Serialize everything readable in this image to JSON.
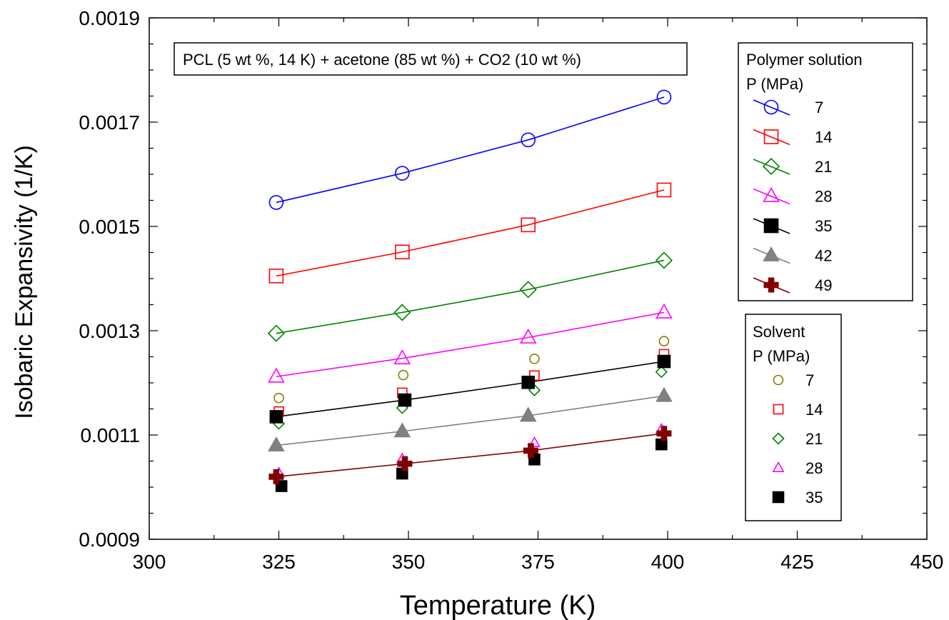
{
  "chart_data": {
    "type": "scatter",
    "title": "",
    "annotation": "PCL (5 wt %, 14 K) + acetone (85 wt %) + CO2 (10 wt %)",
    "xlabel": "Temperature (K)",
    "ylabel": "Isobaric Expansivity (1/K)",
    "xlim": [
      300,
      450
    ],
    "ylim": [
      0.0009,
      0.0019
    ],
    "xticks": [
      "300",
      "325",
      "350",
      "375",
      "400",
      "425",
      "450"
    ],
    "yticks": [
      "0.0009",
      "0.0011",
      "0.0013",
      "0.0015",
      "0.0017",
      "0.0019"
    ],
    "grid": false,
    "legend_polymer": {
      "title": "Polymer solution",
      "subtitle": "P (MPa)",
      "placement": "top-right"
    },
    "legend_solvent": {
      "title": "Solvent",
      "subtitle": "P (MPa)",
      "placement": "right"
    },
    "polymer_series": [
      {
        "name": "7",
        "marker": "circle-open",
        "color": "#0000ff",
        "x": [
          324.5,
          348.8,
          373.1,
          399.3
        ],
        "y": [
          0.001546,
          0.001602,
          0.001666,
          0.001748
        ],
        "fit_end": [
          0.001546,
          0.00175
        ]
      },
      {
        "name": "14",
        "marker": "square-open",
        "color": "#ff0000",
        "x": [
          324.5,
          348.8,
          373.1,
          399.3
        ],
        "y": [
          0.001405,
          0.001451,
          0.001503,
          0.00157
        ],
        "fit_end": [
          0.001405,
          0.001571
        ]
      },
      {
        "name": "21",
        "marker": "diamond-open",
        "color": "#008000",
        "x": [
          324.5,
          348.8,
          373.1,
          399.3
        ],
        "y": [
          0.001295,
          0.001335,
          0.001379,
          0.001435
        ],
        "fit_end": [
          0.001295,
          0.001436
        ]
      },
      {
        "name": "28",
        "marker": "triangle-open",
        "color": "#ff00ff",
        "x": [
          324.5,
          348.8,
          373.1,
          399.3
        ],
        "y": [
          0.001212,
          0.001247,
          0.001287,
          0.001335
        ],
        "fit_end": [
          0.001212,
          0.001336
        ]
      },
      {
        "name": "35",
        "marker": "square-filled",
        "color": "#000000",
        "x": [
          324.5,
          349.3,
          373.1,
          399.3
        ],
        "y": [
          0.001135,
          0.001167,
          0.001201,
          0.001241
        ],
        "fit_end": [
          0.001135,
          0.001245
        ]
      },
      {
        "name": "42",
        "marker": "triangle-filled",
        "color": "#808080",
        "x": [
          324.5,
          348.8,
          373.1,
          399.3
        ],
        "y": [
          0.00108,
          0.001107,
          0.001137,
          0.001175
        ],
        "fit_end": [
          0.001079,
          0.001175
        ]
      },
      {
        "name": "49",
        "marker": "plus-filled",
        "color": "#800000",
        "x": [
          324.5,
          349.3,
          373.6,
          399.3
        ],
        "y": [
          0.00102,
          0.001045,
          0.00107,
          0.001103
        ],
        "fit_end": [
          0.00102,
          0.001105
        ]
      }
    ],
    "solvent_series": [
      {
        "name": "7",
        "marker": "circle-open",
        "color": "#808000",
        "x": [
          325.0,
          349.0,
          374.3,
          399.3
        ],
        "y": [
          0.001171,
          0.001215,
          0.001246,
          0.00128
        ]
      },
      {
        "name": "14",
        "marker": "square-open",
        "color": "#ff0000",
        "x": [
          325.0,
          348.8,
          374.3,
          399.3
        ],
        "y": [
          0.001145,
          0.001181,
          0.001214,
          0.001255
        ]
      },
      {
        "name": "21",
        "marker": "diamond-open",
        "color": "#008000",
        "x": [
          325.0,
          348.8,
          374.3,
          398.8
        ],
        "y": [
          0.001122,
          0.001152,
          0.001186,
          0.001221
        ]
      },
      {
        "name": "28",
        "marker": "triangle-open",
        "color": "#ff00ff",
        "x": [
          325.0,
          348.8,
          374.3,
          398.8
        ],
        "y": [
          0.001027,
          0.001054,
          0.001085,
          0.001111
        ]
      },
      {
        "name": "35",
        "marker": "square-filled",
        "color": "#000000",
        "x": [
          325.5,
          348.8,
          374.3,
          398.8
        ],
        "y": [
          0.001002,
          0.001026,
          0.001053,
          0.001082
        ]
      }
    ]
  }
}
